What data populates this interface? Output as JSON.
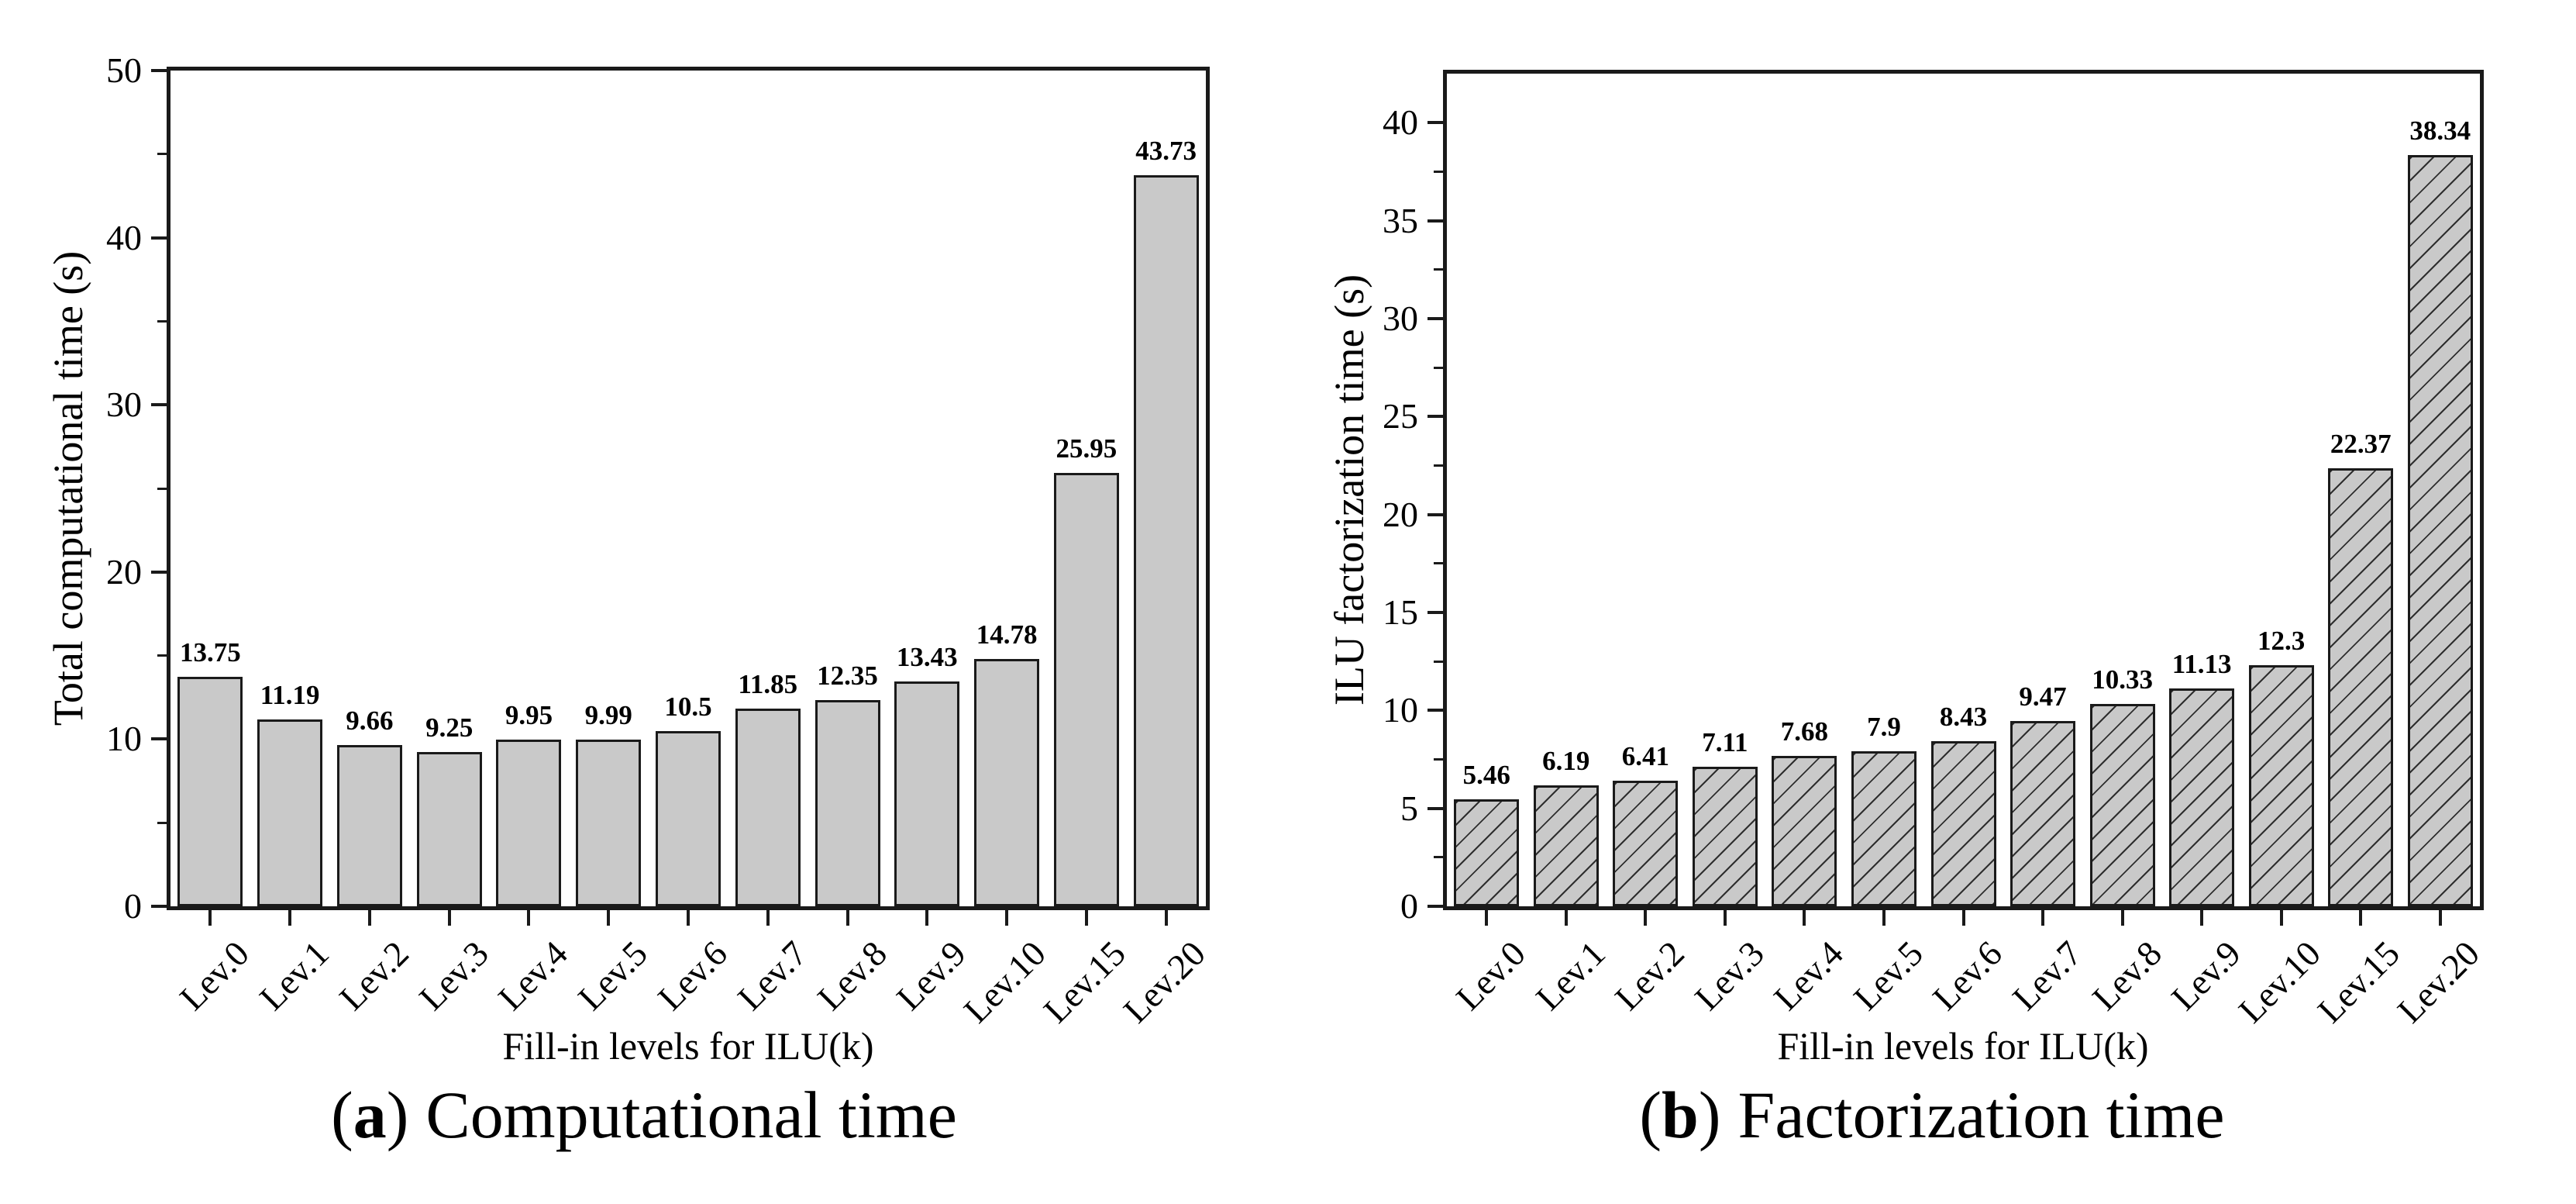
{
  "colors": {
    "background": "#ffffff",
    "bar_fill": "#c9c9c9",
    "bar_border": "#1a1a1a",
    "axis": "#1a1a1a",
    "text": "#000000"
  },
  "chart_data": [
    {
      "type": "bar",
      "panel": "a",
      "title": "(a) Computational time",
      "caption": {
        "open": "(",
        "letter": "a",
        "close": ")",
        "label": "Computational time"
      },
      "xlabel": "Fill-in levels for ILU(k)",
      "ylabel": "Total computational time (s)",
      "categories": [
        "Lev.0",
        "Lev.1",
        "Lev.2",
        "Lev.3",
        "Lev.4",
        "Lev.5",
        "Lev.6",
        "Lev.7",
        "Lev.8",
        "Lev.9",
        "Lev.10",
        "Lev.15",
        "Lev.20"
      ],
      "values": [
        13.75,
        11.19,
        9.66,
        9.25,
        9.95,
        9.99,
        10.5,
        11.85,
        12.35,
        13.43,
        14.78,
        25.95,
        43.73
      ],
      "value_labels": [
        "13.75",
        "11.19",
        "9.66",
        "9.25",
        "9.95",
        "9.99",
        "10.5",
        "11.85",
        "12.35",
        "13.43",
        "14.78",
        "25.95",
        "43.73"
      ],
      "ylim": [
        0,
        50
      ],
      "yticks": [
        0,
        10,
        20,
        30,
        40,
        50
      ],
      "yminor_step": 5,
      "grid": false,
      "legend": "none",
      "bar_hatch": "none"
    },
    {
      "type": "bar",
      "panel": "b",
      "title": "(b) Factorization time",
      "caption": {
        "open": "(",
        "letter": "b",
        "close": ")",
        "label": "Factorization time"
      },
      "xlabel": "Fill-in levels for ILU(k)",
      "ylabel": "ILU factorization time (s)",
      "categories": [
        "Lev.0",
        "Lev.1",
        "Lev.2",
        "Lev.3",
        "Lev.4",
        "Lev.5",
        "Lev.6",
        "Lev.7",
        "Lev.8",
        "Lev.9",
        "Lev.10",
        "Lev.15",
        "Lev.20"
      ],
      "values": [
        5.46,
        6.19,
        6.41,
        7.11,
        7.68,
        7.9,
        8.43,
        9.47,
        10.33,
        11.13,
        12.3,
        22.37,
        38.34
      ],
      "value_labels": [
        "5.46",
        "6.19",
        "6.41",
        "7.11",
        "7.68",
        "7.9",
        "8.43",
        "9.47",
        "10.33",
        "11.13",
        "12.3",
        "22.37",
        "38.34"
      ],
      "ylim": [
        0,
        42.5
      ],
      "yticks": [
        0,
        5,
        10,
        15,
        20,
        25,
        30,
        35,
        40
      ],
      "yminor_step": 2.5,
      "grid": false,
      "legend": "none",
      "bar_hatch": "diagonal"
    }
  ]
}
